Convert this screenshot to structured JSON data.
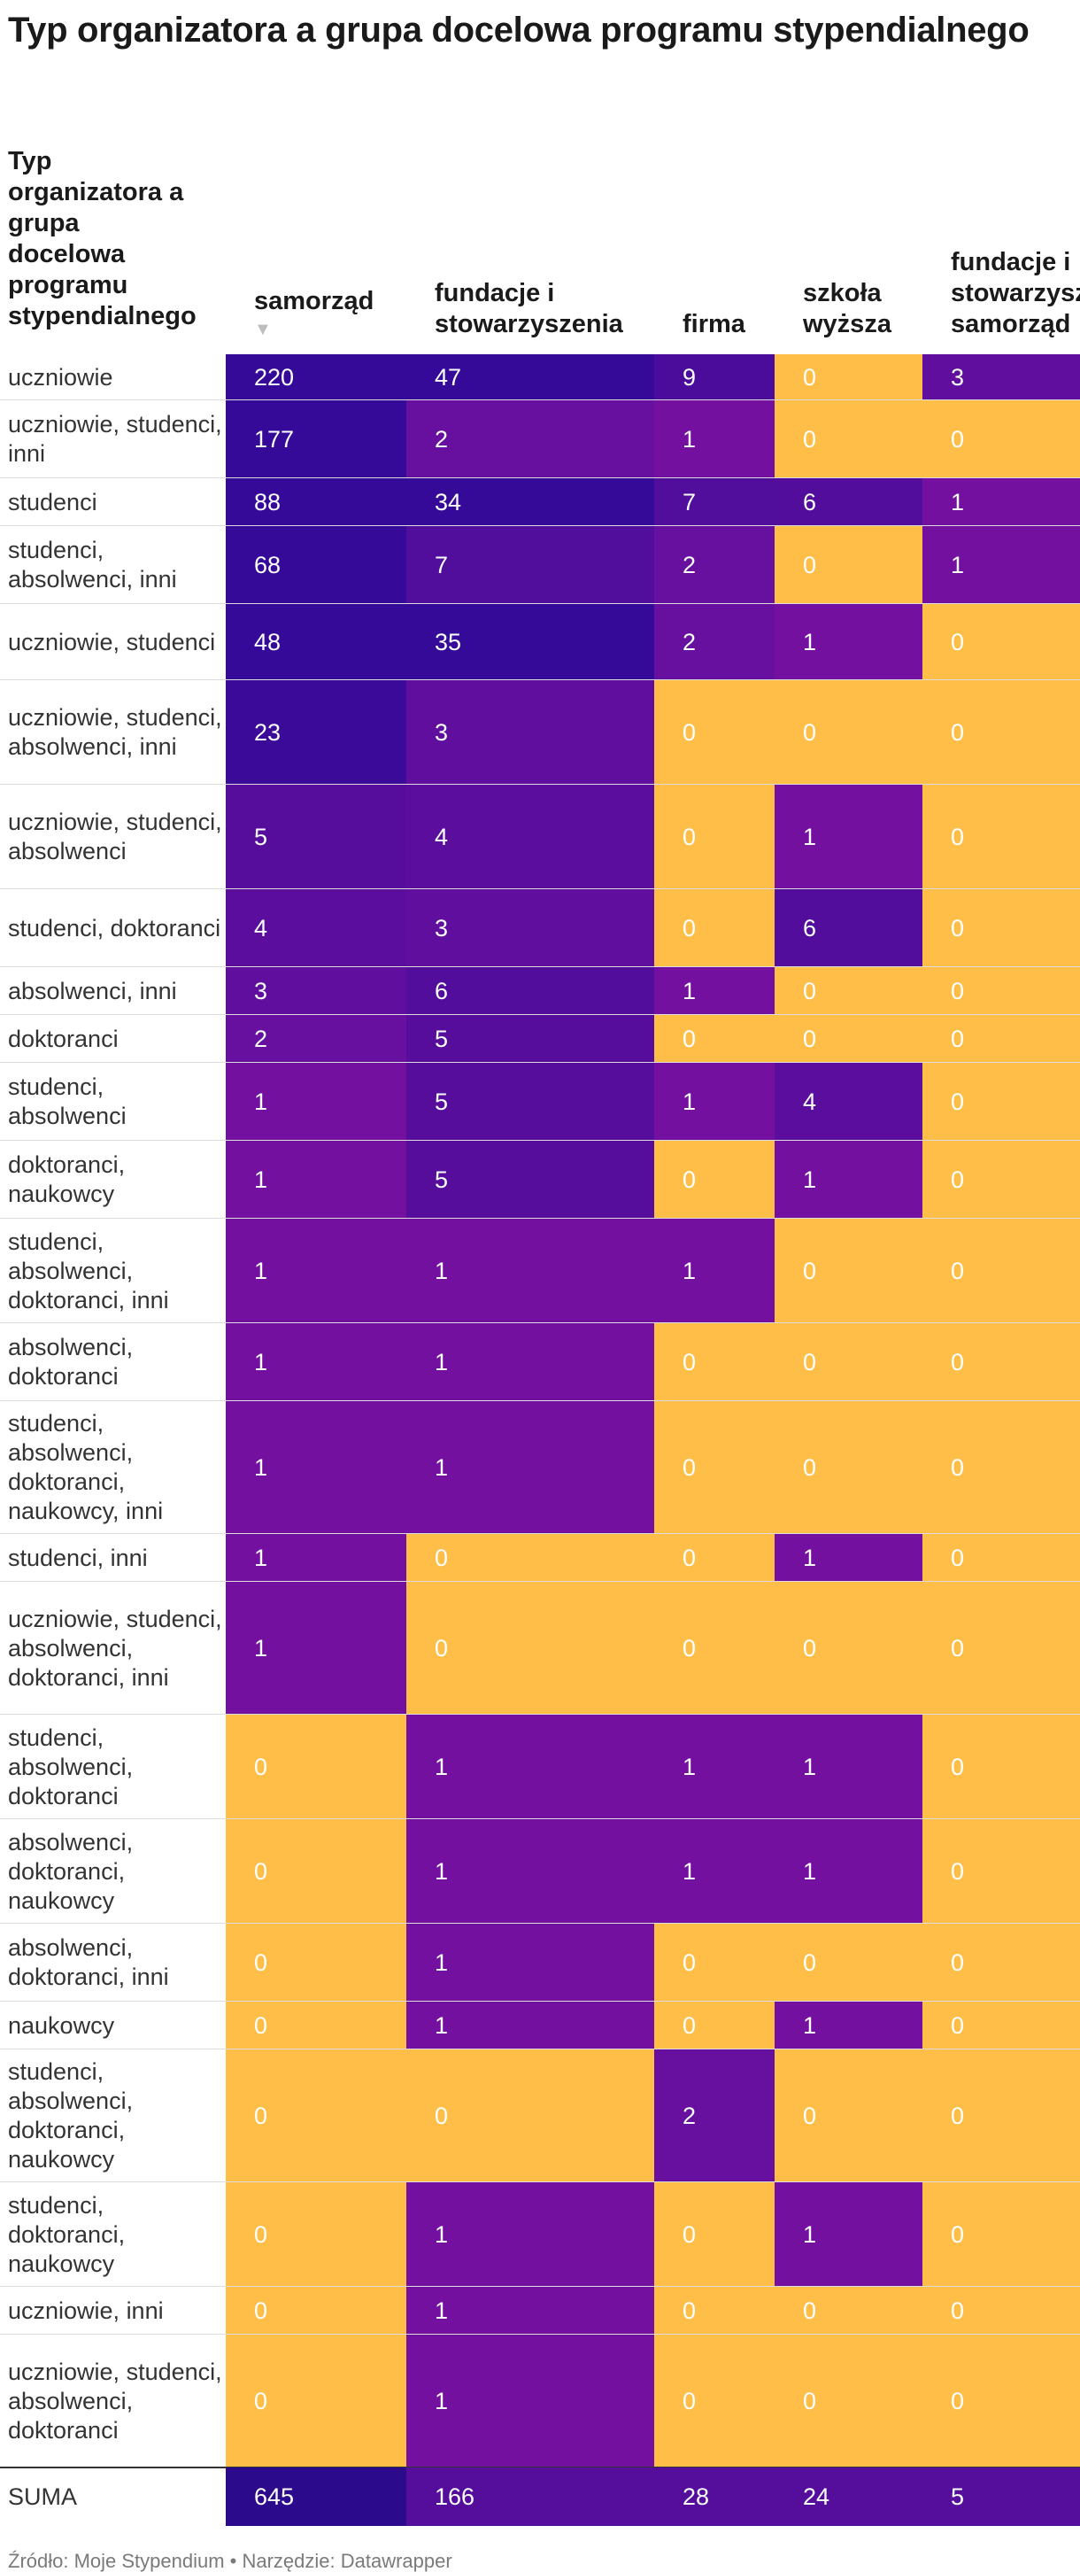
{
  "title": "Typ organizatora a grupa docelowa programu stypendialnego",
  "colors": {
    "low": "#ffbe48",
    "high": "#360a98",
    "mid": "#7410a0",
    "total": "#2c0a8c",
    "text_on_fill": "#ffffff",
    "label_text": "#333333"
  },
  "chart_data": {
    "type": "table",
    "title": "Typ organizatora a grupa docelowa programu stypendialnego",
    "row_header": "Typ organizatora a grupa docelowa programu stypendialnego",
    "columns": [
      {
        "label": "samorząd",
        "sorted": true,
        "sort_icon": "sort-descending-icon"
      },
      {
        "label": "fundacje i stowarzyszenia",
        "sorted": false
      },
      {
        "label": "firma",
        "sorted": false
      },
      {
        "label": "szkoła wyższa",
        "sorted": false
      },
      {
        "label": "fundacje i stowarzyszenia, samorząd",
        "sorted": false
      }
    ],
    "rows": [
      {
        "label": "uczniowie",
        "values": [
          220,
          47,
          9,
          0,
          3
        ]
      },
      {
        "label": "uczniowie, studenci, inni",
        "values": [
          177,
          2,
          1,
          0,
          0
        ]
      },
      {
        "label": "studenci",
        "values": [
          88,
          34,
          7,
          6,
          1
        ]
      },
      {
        "label": "studenci, absolwenci, inni",
        "values": [
          68,
          7,
          2,
          0,
          1
        ]
      },
      {
        "label": "uczniowie, studenci",
        "values": [
          48,
          35,
          2,
          1,
          0
        ]
      },
      {
        "label": "uczniowie, studenci, absolwenci, inni",
        "values": [
          23,
          3,
          0,
          0,
          0
        ]
      },
      {
        "label": "uczniowie, studenci, absolwenci",
        "values": [
          5,
          4,
          0,
          1,
          0
        ]
      },
      {
        "label": "studenci, doktoranci",
        "values": [
          4,
          3,
          0,
          6,
          0
        ]
      },
      {
        "label": "absolwenci, inni",
        "values": [
          3,
          6,
          1,
          0,
          0
        ]
      },
      {
        "label": "doktoranci",
        "values": [
          2,
          5,
          0,
          0,
          0
        ]
      },
      {
        "label": "studenci, absolwenci",
        "values": [
          1,
          5,
          1,
          4,
          0
        ]
      },
      {
        "label": "doktoranci, naukowcy",
        "values": [
          1,
          5,
          0,
          1,
          0
        ]
      },
      {
        "label": "studenci, absolwenci, doktoranci, inni",
        "values": [
          1,
          1,
          1,
          0,
          0
        ]
      },
      {
        "label": "absolwenci, doktoranci",
        "values": [
          1,
          1,
          0,
          0,
          0
        ]
      },
      {
        "label": "studenci, absolwenci, doktoranci, naukowcy, inni",
        "values": [
          1,
          1,
          0,
          0,
          0
        ]
      },
      {
        "label": "studenci, inni",
        "values": [
          1,
          0,
          0,
          1,
          0
        ]
      },
      {
        "label": "uczniowie, studenci, absolwenci, doktoranci, inni",
        "values": [
          1,
          0,
          0,
          0,
          0
        ]
      },
      {
        "label": "studenci, absolwenci, doktoranci",
        "values": [
          0,
          1,
          1,
          1,
          0
        ]
      },
      {
        "label": "absolwenci, doktoranci, naukowcy",
        "values": [
          0,
          1,
          1,
          1,
          0
        ]
      },
      {
        "label": "absolwenci, doktoranci, inni",
        "values": [
          0,
          1,
          0,
          0,
          0
        ]
      },
      {
        "label": "naukowcy",
        "values": [
          0,
          1,
          0,
          1,
          0
        ]
      },
      {
        "label": "studenci, absolwenci, doktoranci, naukowcy",
        "values": [
          0,
          0,
          2,
          0,
          0
        ]
      },
      {
        "label": "studenci, doktoranci, naukowcy",
        "values": [
          0,
          1,
          0,
          1,
          0
        ]
      },
      {
        "label": "uczniowie, inni",
        "values": [
          0,
          1,
          0,
          0,
          0
        ]
      },
      {
        "label": "uczniowie, studenci, absolwenci, doktoranci",
        "values": [
          0,
          1,
          0,
          0,
          0
        ]
      }
    ],
    "total_row": {
      "label": "SUMA",
      "values": [
        645,
        166,
        28,
        24,
        5
      ]
    }
  },
  "footer": {
    "text": "Źródło: Moje Stypendium • Narzędzie: Datawrapper"
  }
}
